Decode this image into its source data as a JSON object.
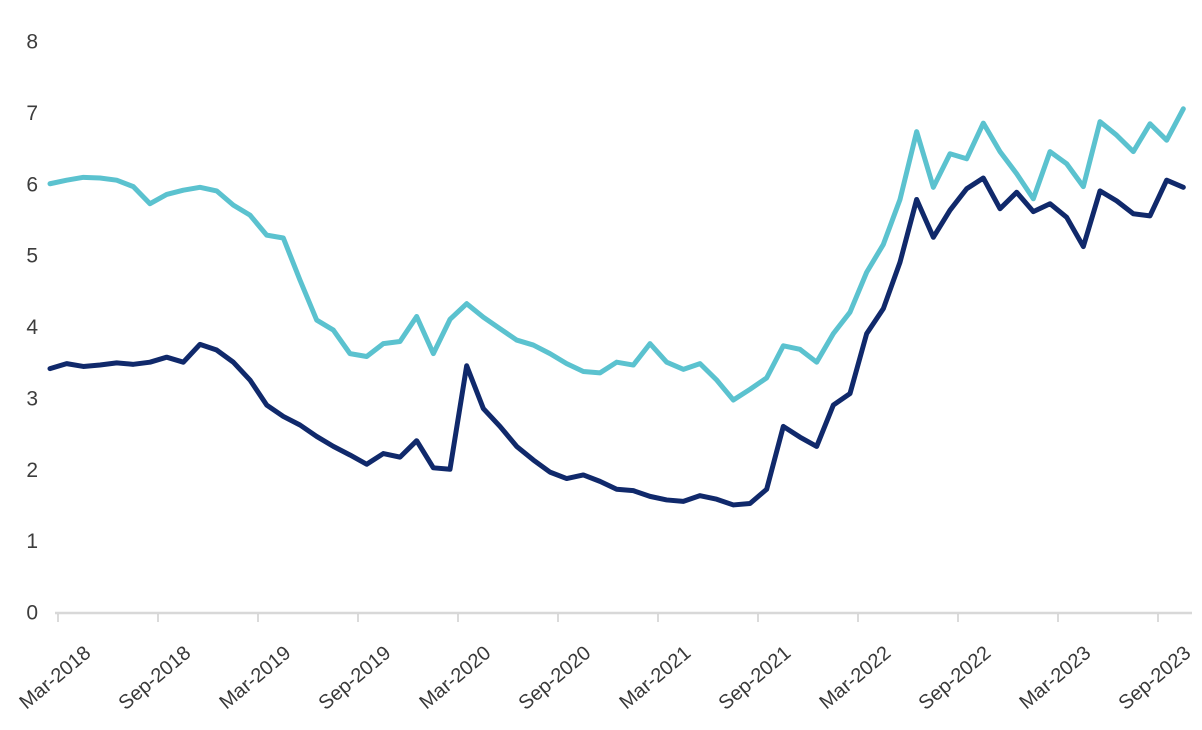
{
  "chart_data": {
    "type": "line",
    "title": "",
    "xlabel": "",
    "ylabel": "",
    "grid": false,
    "legend": "none",
    "ylim": [
      0,
      8
    ],
    "y_ticks": [
      0,
      1,
      2,
      3,
      4,
      5,
      6,
      7,
      8
    ],
    "x_tick_labels": [
      "Mar-2018",
      "Sep-2018",
      "Mar-2019",
      "Sep-2019",
      "Mar-2020",
      "Sep-2020",
      "Mar-2021",
      "Sep-2021",
      "Mar-2022",
      "Sep-2022",
      "Mar-2023",
      "Sep-2023"
    ],
    "x_frequency": "monthly",
    "x": [
      "Mar-2018",
      "Apr-2018",
      "May-2018",
      "Jun-2018",
      "Jul-2018",
      "Aug-2018",
      "Sep-2018",
      "Oct-2018",
      "Nov-2018",
      "Dec-2018",
      "Jan-2019",
      "Feb-2019",
      "Mar-2019",
      "Apr-2019",
      "May-2019",
      "Jun-2019",
      "Jul-2019",
      "Aug-2019",
      "Sep-2019",
      "Oct-2019",
      "Nov-2019",
      "Dec-2019",
      "Jan-2020",
      "Feb-2020",
      "Mar-2020",
      "Apr-2020",
      "May-2020",
      "Jun-2020",
      "Jul-2020",
      "Aug-2020",
      "Sep-2020",
      "Oct-2020",
      "Nov-2020",
      "Dec-2020",
      "Jan-2021",
      "Feb-2021",
      "Mar-2021",
      "Apr-2021",
      "May-2021",
      "Jun-2021",
      "Jul-2021",
      "Aug-2021",
      "Sep-2021",
      "Oct-2021",
      "Nov-2021",
      "Dec-2021",
      "Jan-2022",
      "Feb-2022",
      "Mar-2022",
      "Apr-2022",
      "May-2022",
      "Jun-2022",
      "Jul-2022",
      "Aug-2022",
      "Sep-2022",
      "Oct-2022",
      "Nov-2022",
      "Dec-2022",
      "Jan-2023",
      "Feb-2023",
      "Mar-2023",
      "Apr-2023",
      "May-2023",
      "Jun-2023",
      "Jul-2023",
      "Aug-2023",
      "Sep-2023",
      "Oct-2023",
      "Nov-2023"
    ],
    "series": [
      {
        "name": "teal-series",
        "color": "#5BC2CF",
        "values": [
          6.0,
          6.05,
          6.09,
          6.08,
          6.05,
          5.96,
          5.72,
          5.85,
          5.91,
          5.95,
          5.9,
          5.7,
          5.56,
          5.28,
          5.24,
          4.65,
          4.09,
          3.95,
          3.62,
          3.58,
          3.76,
          3.79,
          4.14,
          3.62,
          4.1,
          4.32,
          4.13,
          3.97,
          3.81,
          3.74,
          3.62,
          3.48,
          3.37,
          3.35,
          3.5,
          3.46,
          3.76,
          3.5,
          3.4,
          3.48,
          3.25,
          2.97,
          3.12,
          3.28,
          3.73,
          3.68,
          3.5,
          3.9,
          4.2,
          4.76,
          5.15,
          5.78,
          6.73,
          5.95,
          6.42,
          6.35,
          6.85,
          6.45,
          6.14,
          5.79,
          6.45,
          6.28,
          5.96,
          6.87,
          6.68,
          6.45,
          6.84,
          6.61,
          7.05
        ]
      },
      {
        "name": "navy-series",
        "color": "#10296B",
        "values": [
          3.41,
          3.48,
          3.44,
          3.46,
          3.49,
          3.47,
          3.5,
          3.57,
          3.5,
          3.75,
          3.67,
          3.5,
          3.25,
          2.9,
          2.74,
          2.62,
          2.46,
          2.32,
          2.2,
          2.07,
          2.22,
          2.17,
          2.4,
          2.02,
          2.0,
          3.45,
          2.85,
          2.6,
          2.32,
          2.13,
          1.96,
          1.87,
          1.92,
          1.83,
          1.72,
          1.7,
          1.62,
          1.57,
          1.55,
          1.63,
          1.58,
          1.5,
          1.52,
          1.72,
          2.6,
          2.45,
          2.32,
          2.9,
          3.06,
          3.9,
          4.25,
          4.9,
          5.78,
          5.25,
          5.63,
          5.93,
          6.08,
          5.65,
          5.88,
          5.61,
          5.72,
          5.53,
          5.12,
          5.9,
          5.76,
          5.58,
          5.55,
          6.05,
          5.95
        ]
      }
    ],
    "axis_color": "#D8D8D8",
    "tick_color": "#CFCFCF",
    "label_color": "#3d3d3d"
  }
}
